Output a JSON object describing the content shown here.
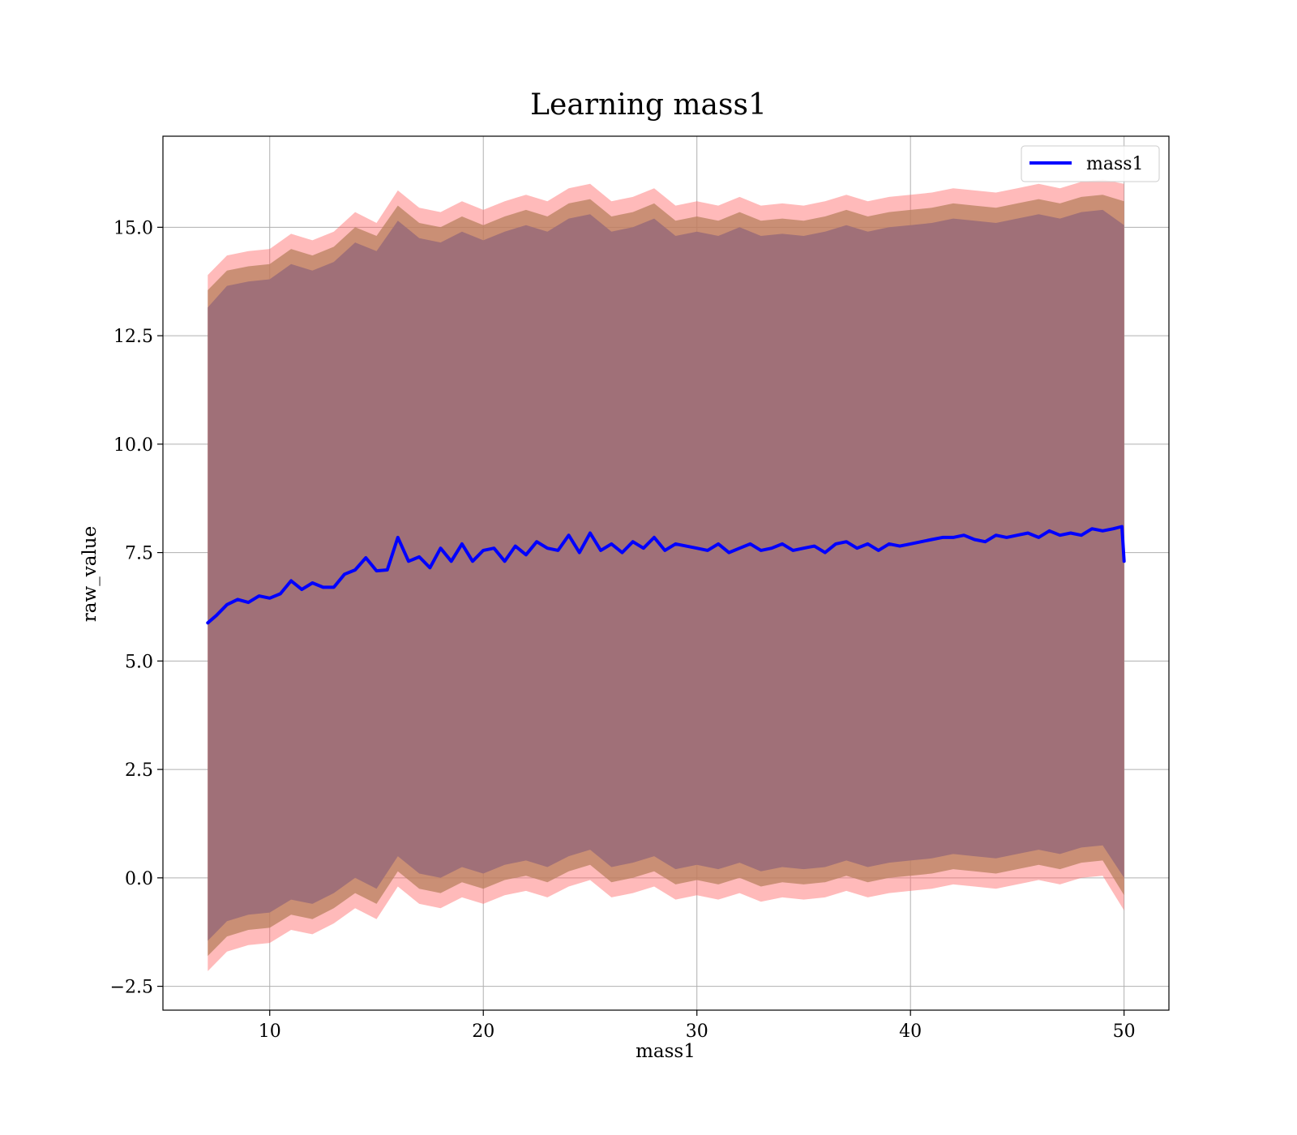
{
  "chart_data": {
    "type": "line",
    "title": "Learning mass1",
    "xlabel": "mass1",
    "ylabel": "raw_value",
    "xlim": [
      5,
      52.1
    ],
    "ylim": [
      -3.05,
      17.1
    ],
    "xticks": [
      10,
      20,
      30,
      40,
      50
    ],
    "yticks": [
      -2.5,
      0.0,
      2.5,
      5.0,
      7.5,
      10.0,
      12.5,
      15.0
    ],
    "ytick_labels": [
      "−2.5",
      "0.0",
      "2.5",
      "5.0",
      "7.5",
      "10.0",
      "12.5",
      "15.0"
    ],
    "grid": true,
    "legend": {
      "position": "top-right",
      "entries": [
        {
          "name": "mass1",
          "color": "#0000ff"
        }
      ]
    },
    "series": [
      {
        "name": "mass1",
        "kind": "line",
        "color": "#0000ff",
        "x": [
          7.1,
          7.5,
          8.0,
          8.5,
          9.0,
          9.5,
          10.0,
          10.5,
          11.0,
          11.5,
          12.0,
          12.5,
          13.0,
          13.5,
          14.0,
          14.5,
          15.0,
          15.5,
          16.0,
          16.5,
          17.0,
          17.5,
          18.0,
          18.5,
          19.0,
          19.5,
          20.0,
          20.5,
          21.0,
          21.5,
          22.0,
          22.5,
          23.0,
          23.5,
          24.0,
          24.5,
          25.0,
          25.5,
          26.0,
          26.5,
          27.0,
          27.5,
          28.0,
          28.5,
          29.0,
          29.5,
          30.0,
          30.5,
          31.0,
          31.5,
          32.0,
          32.5,
          33.0,
          33.5,
          34.0,
          34.5,
          35.0,
          35.5,
          36.0,
          36.5,
          37.0,
          37.5,
          38.0,
          38.5,
          39.0,
          39.5,
          40.0,
          40.5,
          41.0,
          41.5,
          42.0,
          42.5,
          43.0,
          43.5,
          44.0,
          44.5,
          45.0,
          45.5,
          46.0,
          46.5,
          47.0,
          47.5,
          48.0,
          48.5,
          49.0,
          49.5,
          49.9,
          50.0
        ],
        "y": [
          5.88,
          6.05,
          6.3,
          6.42,
          6.35,
          6.5,
          6.45,
          6.55,
          6.85,
          6.65,
          6.8,
          6.7,
          6.7,
          7.0,
          7.1,
          7.38,
          7.08,
          7.1,
          7.85,
          7.3,
          7.4,
          7.15,
          7.6,
          7.3,
          7.7,
          7.3,
          7.55,
          7.6,
          7.3,
          7.65,
          7.45,
          7.75,
          7.6,
          7.55,
          7.9,
          7.5,
          7.95,
          7.55,
          7.7,
          7.5,
          7.75,
          7.6,
          7.85,
          7.55,
          7.7,
          7.65,
          7.6,
          7.55,
          7.7,
          7.5,
          7.6,
          7.7,
          7.55,
          7.6,
          7.7,
          7.55,
          7.6,
          7.65,
          7.5,
          7.7,
          7.75,
          7.6,
          7.7,
          7.55,
          7.7,
          7.65,
          7.7,
          7.75,
          7.8,
          7.85,
          7.85,
          7.9,
          7.8,
          7.75,
          7.9,
          7.85,
          7.9,
          7.95,
          7.85,
          8.0,
          7.9,
          7.95,
          7.9,
          8.05,
          8.0,
          8.05,
          8.1,
          7.3
        ]
      },
      {
        "name": "",
        "kind": "band",
        "color": "#ff6666",
        "opacity": 0.45,
        "x": [
          7.1,
          8.0,
          9.0,
          10.0,
          11.0,
          12.0,
          13.0,
          14.0,
          15.0,
          16.0,
          17.0,
          18.0,
          19.0,
          20.0,
          21.0,
          22.0,
          23.0,
          24.0,
          25.0,
          26.0,
          27.0,
          28.0,
          29.0,
          30.0,
          31.0,
          32.0,
          33.0,
          34.0,
          35.0,
          36.0,
          37.0,
          38.0,
          39.0,
          40.0,
          41.0,
          42.0,
          43.0,
          44.0,
          45.0,
          46.0,
          47.0,
          48.0,
          49.0,
          50.0
        ],
        "upper": [
          13.9,
          14.35,
          14.45,
          14.5,
          14.85,
          14.7,
          14.9,
          15.35,
          15.1,
          15.85,
          15.45,
          15.35,
          15.6,
          15.4,
          15.6,
          15.75,
          15.6,
          15.9,
          16.0,
          15.6,
          15.7,
          15.9,
          15.5,
          15.6,
          15.5,
          15.7,
          15.5,
          15.55,
          15.5,
          15.6,
          15.75,
          15.6,
          15.7,
          15.75,
          15.8,
          15.9,
          15.85,
          15.8,
          15.9,
          16.0,
          15.9,
          16.05,
          16.1,
          16.0
        ],
        "lower": [
          -2.15,
          -1.7,
          -1.55,
          -1.5,
          -1.2,
          -1.3,
          -1.05,
          -0.7,
          -0.95,
          -0.2,
          -0.6,
          -0.7,
          -0.45,
          -0.6,
          -0.4,
          -0.3,
          -0.45,
          -0.2,
          -0.05,
          -0.45,
          -0.35,
          -0.2,
          -0.5,
          -0.4,
          -0.5,
          -0.35,
          -0.55,
          -0.45,
          -0.5,
          -0.45,
          -0.3,
          -0.45,
          -0.35,
          -0.3,
          -0.25,
          -0.15,
          -0.2,
          -0.25,
          -0.15,
          -0.05,
          -0.15,
          0.0,
          0.05,
          -0.75
        ]
      },
      {
        "name": "",
        "kind": "band",
        "color": "#b8805e",
        "opacity": 0.75,
        "x": [
          7.1,
          8.0,
          9.0,
          10.0,
          11.0,
          12.0,
          13.0,
          14.0,
          15.0,
          16.0,
          17.0,
          18.0,
          19.0,
          20.0,
          21.0,
          22.0,
          23.0,
          24.0,
          25.0,
          26.0,
          27.0,
          28.0,
          29.0,
          30.0,
          31.0,
          32.0,
          33.0,
          34.0,
          35.0,
          36.0,
          37.0,
          38.0,
          39.0,
          40.0,
          41.0,
          42.0,
          43.0,
          44.0,
          45.0,
          46.0,
          47.0,
          48.0,
          49.0,
          50.0
        ],
        "upper": [
          13.55,
          14.0,
          14.1,
          14.15,
          14.5,
          14.35,
          14.55,
          15.0,
          14.8,
          15.5,
          15.1,
          15.0,
          15.25,
          15.05,
          15.25,
          15.4,
          15.25,
          15.55,
          15.65,
          15.25,
          15.35,
          15.55,
          15.15,
          15.25,
          15.15,
          15.35,
          15.15,
          15.2,
          15.15,
          15.25,
          15.4,
          15.25,
          15.35,
          15.4,
          15.45,
          15.55,
          15.5,
          15.45,
          15.55,
          15.65,
          15.55,
          15.7,
          15.75,
          15.6
        ],
        "lower": [
          -1.8,
          -1.35,
          -1.2,
          -1.15,
          -0.85,
          -0.95,
          -0.7,
          -0.35,
          -0.6,
          0.15,
          -0.25,
          -0.35,
          -0.1,
          -0.25,
          -0.05,
          0.05,
          -0.1,
          0.15,
          0.3,
          -0.1,
          0.0,
          0.15,
          -0.15,
          -0.05,
          -0.15,
          0.0,
          -0.2,
          -0.1,
          -0.15,
          -0.1,
          0.05,
          -0.1,
          0.0,
          0.05,
          0.1,
          0.2,
          0.15,
          0.1,
          0.2,
          0.3,
          0.2,
          0.35,
          0.4,
          -0.4
        ]
      },
      {
        "name": "",
        "kind": "band",
        "color": "#a07078",
        "opacity": 1.0,
        "x": [
          7.1,
          8.0,
          9.0,
          10.0,
          11.0,
          12.0,
          13.0,
          14.0,
          15.0,
          16.0,
          17.0,
          18.0,
          19.0,
          20.0,
          21.0,
          22.0,
          23.0,
          24.0,
          25.0,
          26.0,
          27.0,
          28.0,
          29.0,
          30.0,
          31.0,
          32.0,
          33.0,
          34.0,
          35.0,
          36.0,
          37.0,
          38.0,
          39.0,
          40.0,
          41.0,
          42.0,
          43.0,
          44.0,
          45.0,
          46.0,
          47.0,
          48.0,
          49.0,
          50.0
        ],
        "upper": [
          13.15,
          13.65,
          13.75,
          13.8,
          14.15,
          14.0,
          14.2,
          14.65,
          14.45,
          15.15,
          14.75,
          14.65,
          14.9,
          14.7,
          14.9,
          15.05,
          14.9,
          15.2,
          15.3,
          14.9,
          15.0,
          15.2,
          14.8,
          14.9,
          14.8,
          15.0,
          14.8,
          14.85,
          14.8,
          14.9,
          15.05,
          14.9,
          15.0,
          15.05,
          15.1,
          15.2,
          15.15,
          15.1,
          15.2,
          15.3,
          15.2,
          15.35,
          15.4,
          15.05
        ],
        "lower": [
          -1.45,
          -1.0,
          -0.85,
          -0.8,
          -0.5,
          -0.6,
          -0.35,
          0.0,
          -0.25,
          0.5,
          0.1,
          0.0,
          0.25,
          0.1,
          0.3,
          0.4,
          0.25,
          0.5,
          0.65,
          0.25,
          0.35,
          0.5,
          0.2,
          0.3,
          0.2,
          0.35,
          0.15,
          0.25,
          0.2,
          0.25,
          0.4,
          0.25,
          0.35,
          0.4,
          0.45,
          0.55,
          0.5,
          0.45,
          0.55,
          0.65,
          0.55,
          0.7,
          0.75,
          0.0
        ]
      }
    ]
  }
}
